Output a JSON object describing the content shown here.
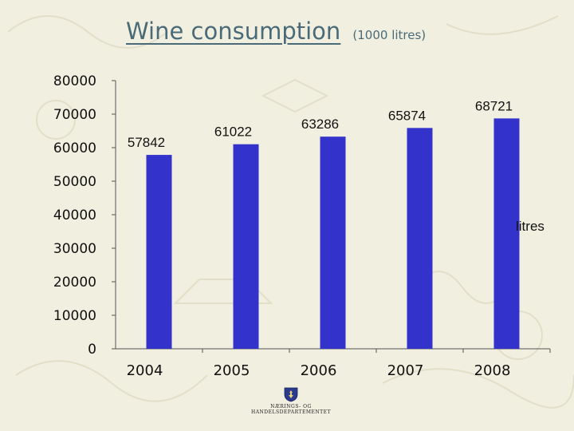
{
  "title": "Wine consumption",
  "subtitle": "(1000 litres)",
  "footer": {
    "department": "NÆRINGS- OG HANDELSDEPARTEMENTET"
  },
  "colors": {
    "background": "#f1efe0",
    "bar": "#3333cc",
    "title": "#4a6a78"
  },
  "chart_data": {
    "type": "bar",
    "categories": [
      "2004",
      "2005",
      "2006",
      "2007",
      "2008"
    ],
    "series": [
      {
        "name": "litres",
        "values": [
          57842,
          61022,
          63286,
          65874,
          68721
        ]
      }
    ],
    "ylim": [
      0,
      80000
    ],
    "yticks": [
      "0",
      "10000",
      "20000",
      "30000",
      "40000",
      "50000",
      "60000",
      "70000",
      "80000"
    ],
    "data_labels": [
      "57842",
      "61022",
      "63286",
      "65874",
      "68721"
    ],
    "legend": "right",
    "grid": false,
    "xlabel": "",
    "ylabel": ""
  }
}
